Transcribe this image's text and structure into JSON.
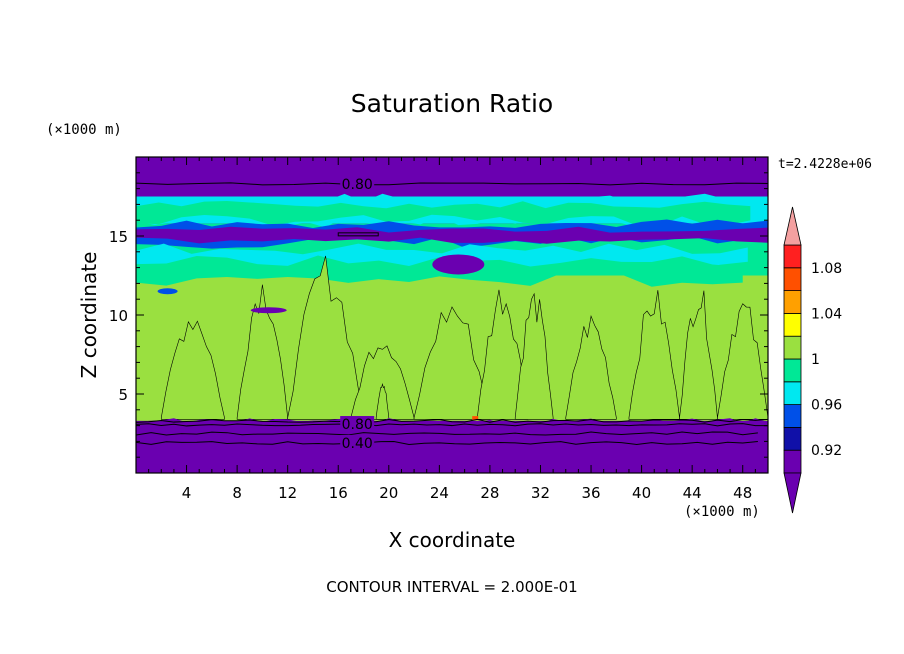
{
  "chart_data": {
    "type": "heatmap",
    "title": "Saturation Ratio",
    "xlabel": "X coordinate",
    "ylabel": "Z coordinate",
    "x_unit": "(×1000 m)",
    "y_unit": "(×1000 m)",
    "xlim": [
      0,
      50
    ],
    "ylim": [
      0,
      20
    ],
    "x_ticks": [
      4,
      8,
      12,
      16,
      20,
      24,
      28,
      32,
      36,
      40,
      44,
      48
    ],
    "y_ticks": [
      5,
      10,
      15
    ],
    "time_label": "t=2.4228e+06",
    "footer": "CONTOUR INTERVAL = 2.000E-01",
    "contour_labels": [
      {
        "text": "0.80",
        "x": 17.5,
        "y": 18.3
      },
      {
        "text": "0.80",
        "x": 17.5,
        "y": 3.1
      },
      {
        "text": "0.40",
        "x": 17.5,
        "y": 1.9
      }
    ],
    "colorbar": {
      "levels": [
        0.9,
        0.92,
        0.94,
        0.96,
        0.98,
        1.0,
        1.02,
        1.04,
        1.06,
        1.08,
        1.1
      ],
      "tick_labels": [
        "0.92",
        "0.96",
        "1",
        "1.04",
        "1.08"
      ],
      "tick_values": [
        0.92,
        0.96,
        1.0,
        1.04,
        1.08
      ],
      "colors": [
        "#6a00b0",
        "#1010a8",
        "#0050e8",
        "#00e8f0",
        "#00e896",
        "#9ae040",
        "#ffff00",
        "#ffa000",
        "#ff5000",
        "#ff2020",
        "#f4a0a0"
      ]
    },
    "layers": [
      {
        "z_range": [
          0,
          3.3
        ],
        "value_class": "below 0.92",
        "color": "#6a00b0"
      },
      {
        "z_range": [
          3.3,
          12.5
        ],
        "value_class": "0.98-1.02 with 0.96-0.98 gaps",
        "color": "#9ae040"
      },
      {
        "z_range": [
          12.5,
          15.8
        ],
        "value_class": "mixed 0.92-1.0",
        "color": "#00e896"
      },
      {
        "z_range": [
          15.8,
          17.5
        ],
        "value_class": "0.94-0.98",
        "color": "#00e8f0"
      },
      {
        "z_range": [
          17.5,
          20
        ],
        "value_class": "below 0.92",
        "color": "#6a00b0"
      }
    ]
  }
}
